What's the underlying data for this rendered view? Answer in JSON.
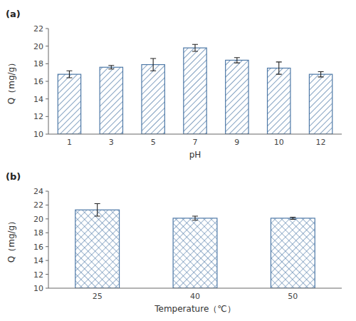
{
  "chart_data": [
    {
      "type": "bar",
      "title": "(a)",
      "categories": [
        "1",
        "3",
        "5",
        "7",
        "9",
        "10",
        "12"
      ],
      "values": [
        16.8,
        17.6,
        17.9,
        19.8,
        18.4,
        17.5,
        16.8
      ],
      "errors": [
        0.4,
        0.2,
        0.7,
        0.4,
        0.3,
        0.7,
        0.3
      ],
      "x_label": "pH",
      "y_label": "Q（mg/g）",
      "ylim": [
        10,
        22
      ],
      "yticks": [
        10,
        12,
        14,
        16,
        18,
        20,
        22
      ]
    },
    {
      "type": "bar",
      "title": "(b)",
      "categories": [
        "25",
        "40",
        "50"
      ],
      "values": [
        21.3,
        20.1,
        20.1
      ],
      "errors": [
        0.9,
        0.3,
        0.15
      ],
      "x_label": "Temperature（℃）",
      "y_label": "Q（mg/g）",
      "ylim": [
        10,
        24
      ],
      "yticks": [
        10,
        12,
        14,
        16,
        18,
        20,
        22,
        24
      ]
    }
  ]
}
